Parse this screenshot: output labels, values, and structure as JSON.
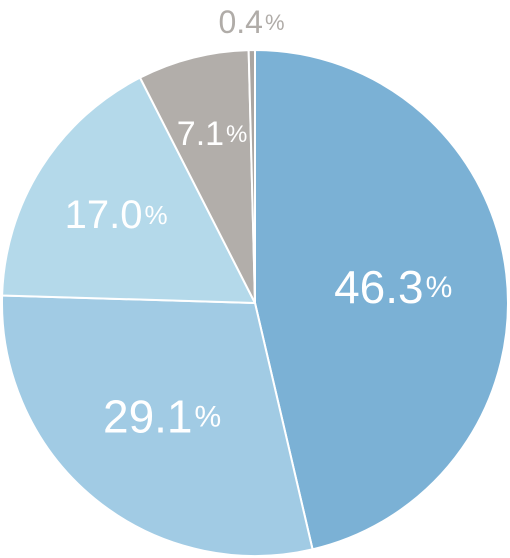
{
  "chart_data": {
    "type": "pie",
    "slices": [
      {
        "value": 46.3,
        "label": "46.3",
        "unit": "%",
        "color": "#7bb1d5",
        "label_color": "#ffffff"
      },
      {
        "value": 29.1,
        "label": "29.1",
        "unit": "%",
        "color": "#a1cbe4",
        "label_color": "#ffffff"
      },
      {
        "value": 17.0,
        "label": "17.0",
        "unit": "%",
        "color": "#b4d9ea",
        "label_color": "#ffffff"
      },
      {
        "value": 7.1,
        "label": "7.1",
        "unit": "%",
        "color": "#b2aeaa",
        "label_color": "#ffffff"
      },
      {
        "value": 0.4,
        "label": "0.4",
        "unit": "%",
        "color": "#aaa6a2",
        "label_color": "#b0aca8"
      }
    ],
    "start_angle": "12 o'clock",
    "direction": "clockwise",
    "legend": "none",
    "separator_color": "#ffffff"
  }
}
